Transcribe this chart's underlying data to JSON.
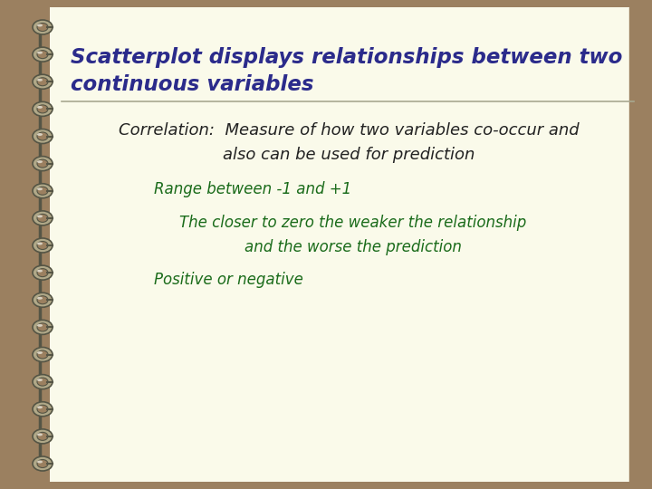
{
  "bg_color": "#9B8060",
  "page_color": "#FAFAEA",
  "title_text_line1": "Scatterplot displays relationships between two",
  "title_text_line2": "continuous variables",
  "title_color": "#2B2B8B",
  "divider_color": "#A8A890",
  "body_text1_line1": "Correlation:  Measure of how two variables co-occur and",
  "body_text1_line2": "also can be used for prediction",
  "body_color": "#222222",
  "bullet1": "Range between -1 and +1",
  "bullet2_line1": "The closer to zero the weaker the relationship",
  "bullet2_line2": "and the worse the prediction",
  "bullet3": "Positive or negative",
  "bullet_color": "#1A6B1A",
  "spiral_metal": "#B0A888",
  "spiral_dark": "#555545",
  "spiral_shine": "#D8D0C0",
  "title_fontsize": 16.5,
  "body_fontsize": 13,
  "bullet_fontsize": 12
}
